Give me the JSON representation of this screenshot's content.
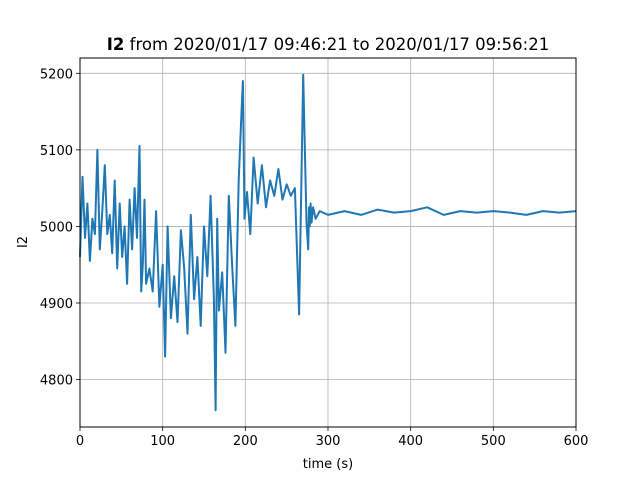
{
  "figure": {
    "title_bold": "I2",
    "title_rest": " from 2020/01/17 09:46:21 to 2020/01/17 09:56:21"
  },
  "chart_data": {
    "type": "line",
    "title": "I2 from 2020/01/17 09:46:21 to 2020/01/17 09:56:21",
    "xlabel": "time (s)",
    "ylabel": "I2",
    "xlim": [
      0,
      600
    ],
    "ylim": [
      4738,
      5220
    ],
    "xticks": [
      0,
      100,
      200,
      300,
      400,
      500,
      600
    ],
    "yticks": [
      4800,
      4900,
      5000,
      5100,
      5200
    ],
    "grid": true,
    "color": "#1f77b4",
    "series": [
      {
        "x": [
          0,
          3,
          6,
          9,
          12,
          15,
          18,
          21,
          24,
          27,
          30,
          33,
          36,
          39,
          42,
          45,
          48,
          51,
          54,
          57,
          60,
          63,
          66,
          69,
          72,
          74,
          76,
          78,
          80,
          84,
          88,
          92,
          96,
          100,
          103,
          106,
          110,
          114,
          118,
          122,
          126,
          130,
          134,
          138,
          142,
          146,
          150,
          154,
          158,
          162,
          164,
          166,
          168,
          172,
          176,
          180,
          184,
          188,
          192,
          195,
          197,
          199,
          202,
          206,
          210,
          215,
          220,
          225,
          230,
          235,
          240,
          245,
          250,
          255,
          260,
          265,
          270,
          274,
          276,
          277,
          278,
          279,
          280,
          282,
          285,
          290,
          300,
          320,
          340,
          360,
          380,
          400,
          420,
          440,
          460,
          480,
          500,
          520,
          540,
          560,
          580,
          600
        ],
        "y": [
          4960,
          5065,
          4985,
          5030,
          4955,
          5010,
          4990,
          5100,
          4970,
          5020,
          5080,
          4990,
          5015,
          4965,
          5060,
          4945,
          5030,
          4960,
          5000,
          4925,
          5035,
          4970,
          5050,
          4985,
          5105,
          4915,
          4950,
          5035,
          4925,
          4945,
          4915,
          5020,
          4895,
          4950,
          4830,
          5000,
          4880,
          4935,
          4875,
          4995,
          4945,
          4860,
          5015,
          4905,
          4960,
          4870,
          5000,
          4935,
          5040,
          4905,
          4760,
          5010,
          4890,
          4940,
          4835,
          5040,
          4950,
          4870,
          5060,
          5140,
          5190,
          5010,
          5045,
          4990,
          5090,
          5030,
          5080,
          5025,
          5060,
          5040,
          5075,
          5035,
          5055,
          5040,
          5050,
          4885,
          5198,
          5005,
          4970,
          5025,
          5000,
          5030,
          5005,
          5025,
          5010,
          5020,
          5015,
          5020,
          5015,
          5022,
          5018,
          5020,
          5025,
          5015,
          5020,
          5018,
          5020,
          5018,
          5015,
          5020,
          5018,
          5020
        ]
      }
    ]
  }
}
